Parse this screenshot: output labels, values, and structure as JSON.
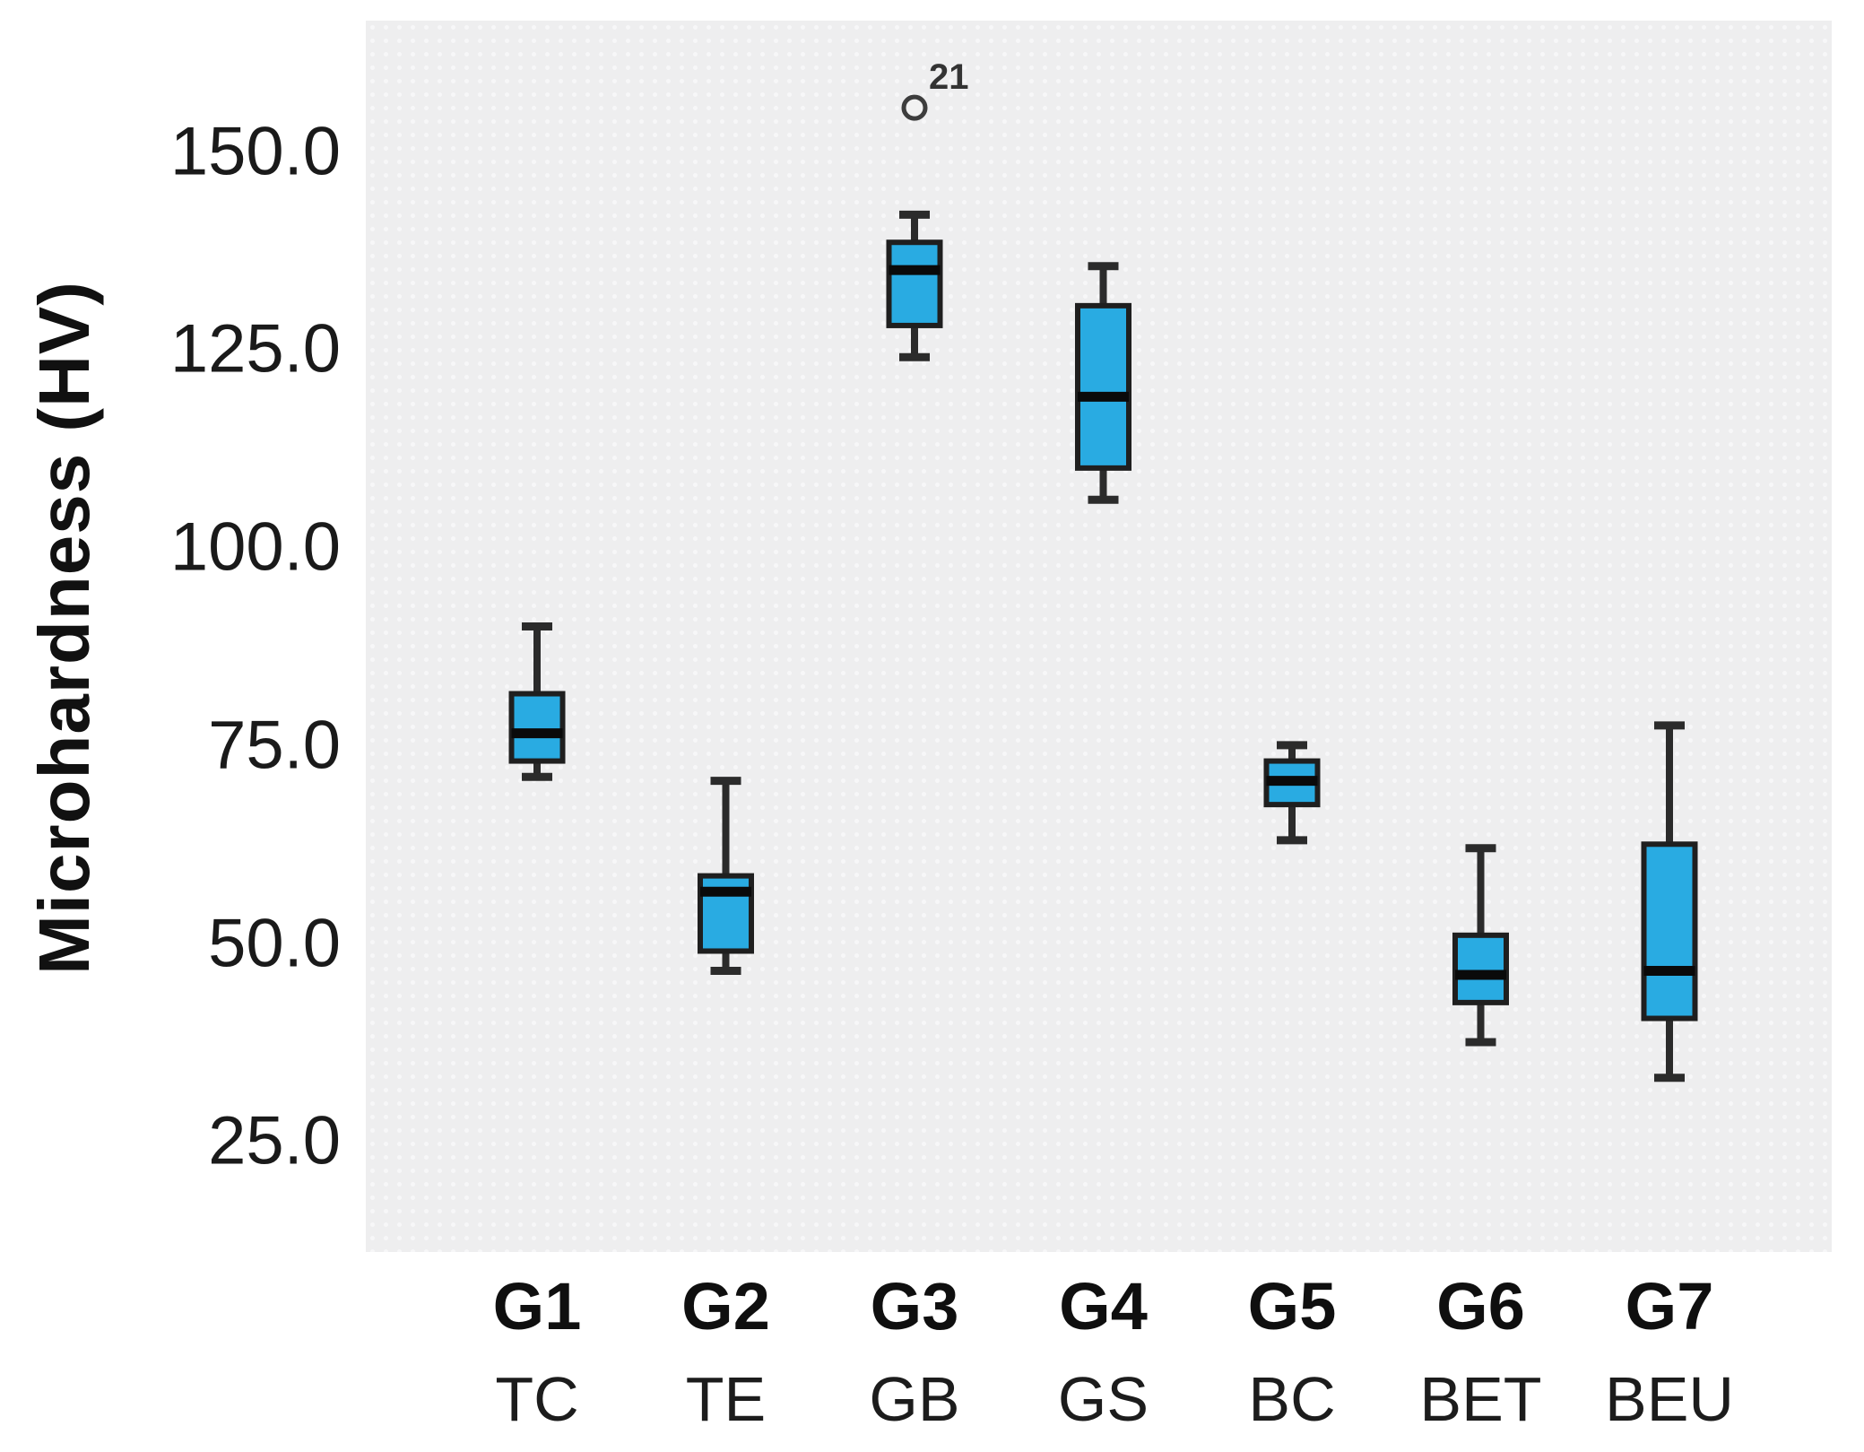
{
  "figure": {
    "background": "#ffffff",
    "plot_background": "#eeeeef"
  },
  "chart_data": {
    "type": "box",
    "title": "",
    "xlabel": "",
    "ylabel": "Microhardness (HV)",
    "ylim": [
      11,
      166.5
    ],
    "grid": false,
    "legend": null,
    "yticks": [
      {
        "value": 150,
        "label": "150.0"
      },
      {
        "value": 125,
        "label": "125.0"
      },
      {
        "value": 100,
        "label": "100.0"
      },
      {
        "value": 75,
        "label": "75.0"
      },
      {
        "value": 50,
        "label": "50.0"
      },
      {
        "value": 25,
        "label": "25.0"
      }
    ],
    "categories": [
      "G1",
      "G2",
      "G3",
      "G4",
      "G5",
      "G6",
      "G7"
    ],
    "category_sublabels": [
      "TC",
      "TE",
      "GB",
      "GS",
      "BC",
      "BET",
      "BEU"
    ],
    "boxes": [
      {
        "group": "G1",
        "sublabel": "TC",
        "whisker_low": 71,
        "q1": 73,
        "median": 76.5,
        "q3": 81.5,
        "whisker_high": 90,
        "outliers": []
      },
      {
        "group": "G2",
        "sublabel": "TE",
        "whisker_low": 46.5,
        "q1": 49,
        "median": 56.5,
        "q3": 58.5,
        "whisker_high": 70.5,
        "outliers": []
      },
      {
        "group": "G3",
        "sublabel": "GB",
        "whisker_low": 124,
        "q1": 128,
        "median": 135,
        "q3": 138.5,
        "whisker_high": 142,
        "outliers": [
          {
            "value": 155.5,
            "label": "21"
          }
        ]
      },
      {
        "group": "G4",
        "sublabel": "GS",
        "whisker_low": 106,
        "q1": 110,
        "median": 119,
        "q3": 130.5,
        "whisker_high": 135.5,
        "outliers": []
      },
      {
        "group": "G5",
        "sublabel": "BC",
        "whisker_low": 63,
        "q1": 67.5,
        "median": 70.5,
        "q3": 73,
        "whisker_high": 75,
        "outliers": []
      },
      {
        "group": "G6",
        "sublabel": "BET",
        "whisker_low": 37.5,
        "q1": 42.5,
        "median": 46,
        "q3": 51,
        "whisker_high": 62,
        "outliers": []
      },
      {
        "group": "G7",
        "sublabel": "BEU",
        "whisker_low": 33,
        "q1": 40.5,
        "median": 46.5,
        "q3": 62.5,
        "whisker_high": 77.5,
        "outliers": []
      }
    ],
    "colors": {
      "box_fill": "#29abe2",
      "box_stroke": "#1f1f1f",
      "median": "#0a0a0a",
      "whisker": "#2b2b2b",
      "outlier_stroke": "#3d3d3d",
      "outlier_fill": "#f2f2f2",
      "outlier_label": "#333333",
      "tick_text": "#1a1a1a",
      "axis_label": "#111111"
    }
  }
}
